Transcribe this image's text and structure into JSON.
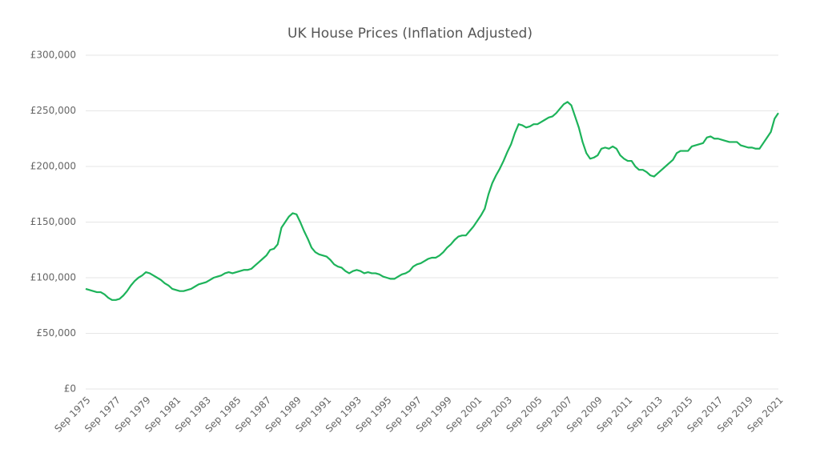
{
  "chart_data": {
    "type": "line",
    "title": "UK House Prices (Inflation Adjusted)",
    "categories": [
      "Sep 1975",
      null,
      null,
      null,
      null,
      null,
      null,
      null,
      "Sep 1977",
      null,
      null,
      null,
      null,
      null,
      null,
      null,
      "Sep 1979",
      null,
      null,
      null,
      null,
      null,
      null,
      null,
      "Sep 1981",
      null,
      null,
      null,
      null,
      null,
      null,
      null,
      "Sep 1983",
      null,
      null,
      null,
      null,
      null,
      null,
      null,
      "Sep 1985",
      null,
      null,
      null,
      null,
      null,
      null,
      null,
      "Sep 1987",
      null,
      null,
      null,
      null,
      null,
      null,
      null,
      "Sep 1989",
      null,
      null,
      null,
      null,
      null,
      null,
      null,
      "Sep 1991",
      null,
      null,
      null,
      null,
      null,
      null,
      null,
      "Sep 1993",
      null,
      null,
      null,
      null,
      null,
      null,
      null,
      "Sep 1995",
      null,
      null,
      null,
      null,
      null,
      null,
      null,
      "Sep 1997",
      null,
      null,
      null,
      null,
      null,
      null,
      null,
      "Sep 1999",
      null,
      null,
      null,
      null,
      null,
      null,
      null,
      "Sep 2001",
      null,
      null,
      null,
      null,
      null,
      null,
      null,
      "Sep 2003",
      null,
      null,
      null,
      null,
      null,
      null,
      null,
      "Sep 2005",
      null,
      null,
      null,
      null,
      null,
      null,
      null,
      "Sep 2007",
      null,
      null,
      null,
      null,
      null,
      null,
      null,
      "Sep 2009",
      null,
      null,
      null,
      null,
      null,
      null,
      null,
      "Sep 2011",
      null,
      null,
      null,
      null,
      null,
      null,
      null,
      "Sep 2013",
      null,
      null,
      null,
      null,
      null,
      null,
      null,
      "Sep 2015",
      null,
      null,
      null,
      null,
      null,
      null,
      null,
      "Sep 2017",
      null,
      null,
      null,
      null,
      null,
      null,
      null,
      "Sep 2019",
      null,
      null,
      null,
      null,
      null,
      null,
      null,
      "Sep 2021"
    ],
    "values": [
      90000,
      89000,
      88000,
      87000,
      87000,
      85000,
      82000,
      80000,
      80000,
      81000,
      84000,
      88000,
      93000,
      97000,
      100000,
      102000,
      105000,
      104000,
      102000,
      100000,
      98000,
      95000,
      93000,
      90000,
      89000,
      88000,
      88000,
      89000,
      90000,
      92000,
      94000,
      95000,
      96000,
      98000,
      100000,
      101000,
      102000,
      104000,
      105000,
      104000,
      105000,
      106000,
      107000,
      107000,
      108000,
      111000,
      114000,
      117000,
      120000,
      125000,
      126000,
      130000,
      145000,
      150000,
      155000,
      158000,
      157000,
      150000,
      142000,
      135000,
      127000,
      123000,
      121000,
      120000,
      119000,
      116000,
      112000,
      110000,
      109000,
      106000,
      104000,
      106000,
      107000,
      106000,
      104000,
      105000,
      104000,
      104000,
      103000,
      101000,
      100000,
      99000,
      99000,
      101000,
      103000,
      104000,
      106000,
      110000,
      112000,
      113000,
      115000,
      117000,
      118000,
      118000,
      120000,
      123000,
      127000,
      130000,
      134000,
      137000,
      138000,
      138000,
      142000,
      146000,
      151000,
      156000,
      162000,
      175000,
      185000,
      192000,
      198000,
      205000,
      213000,
      220000,
      230000,
      238000,
      237000,
      235000,
      236000,
      238000,
      238000,
      240000,
      242000,
      244000,
      245000,
      248000,
      252000,
      256000,
      258000,
      255000,
      245000,
      235000,
      222000,
      212000,
      207000,
      208000,
      210000,
      216000,
      217000,
      216000,
      218000,
      216000,
      210000,
      207000,
      205000,
      205000,
      200000,
      197000,
      197000,
      195000,
      192000,
      191000,
      194000,
      197000,
      200000,
      203000,
      206000,
      212000,
      214000,
      214000,
      214000,
      218000,
      219000,
      220000,
      221000,
      226000,
      227000,
      225000,
      225000,
      224000,
      223000,
      222000,
      222000,
      222000,
      219000,
      218000,
      217000,
      217000,
      216000,
      216000,
      221000,
      226000,
      231000,
      243000,
      248000
    ],
    "color": "#1db35a",
    "ylim": [
      0,
      300000
    ],
    "yticks": [
      {
        "value": 0,
        "label": "£0"
      },
      {
        "value": 50000,
        "label": "£50,000"
      },
      {
        "value": 100000,
        "label": "£100,000"
      },
      {
        "value": 150000,
        "label": "£150,000"
      },
      {
        "value": 200000,
        "label": "£200,000"
      },
      {
        "value": 250000,
        "label": "£250,000"
      },
      {
        "value": 300000,
        "label": "£300,000"
      }
    ],
    "grid": true
  }
}
